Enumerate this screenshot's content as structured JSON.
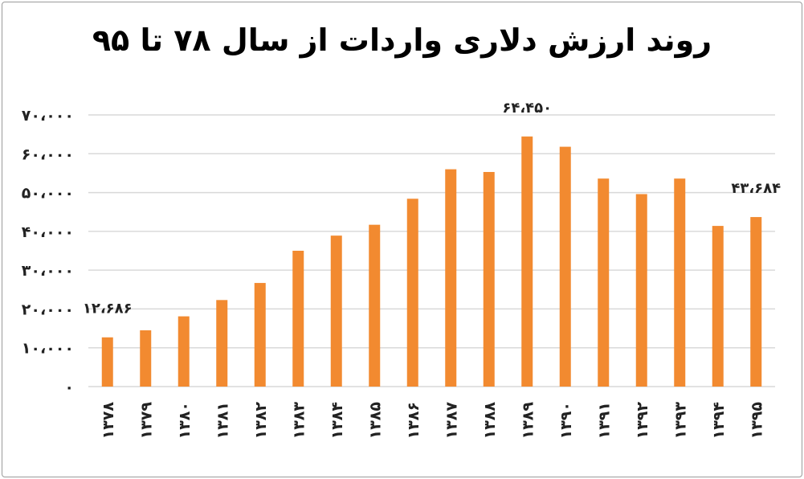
{
  "chart_data": {
    "type": "bar",
    "title": "روند ارزش دلاری واردات از سال ۷۸ تا ۹۵",
    "categories": [
      "۱۳۷۸",
      "۱۳۷۹",
      "۱۳۸۰",
      "۱۳۸۱",
      "۱۳۸۲",
      "۱۳۸۳",
      "۱۳۸۴",
      "۱۳۸۵",
      "۱۳۸۶",
      "۱۳۸۷",
      "۱۳۸۸",
      "۱۳۸۹",
      "۱۳۹۰",
      "۱۳۹۱",
      "۱۳۹۲",
      "۱۳۹۳",
      "۱۳۹۴",
      "۱۳۹۵"
    ],
    "values": [
      12686,
      14500,
      18100,
      22300,
      26700,
      35000,
      38900,
      41700,
      48400,
      56000,
      55300,
      64450,
      61800,
      53600,
      49600,
      53600,
      41400,
      43684
    ],
    "ylim": [
      0,
      70000
    ],
    "yticks": [
      0,
      10000,
      20000,
      30000,
      40000,
      50000,
      60000,
      70000
    ],
    "ytick_labels": [
      "۰",
      "۱۰،۰۰۰",
      "۲۰،۰۰۰",
      "۳۰،۰۰۰",
      "۴۰،۰۰۰",
      "۵۰،۰۰۰",
      "۶۰،۰۰۰",
      "۷۰،۰۰۰"
    ],
    "data_labels": [
      {
        "index": 0,
        "text": "۱۲،۶۸۶"
      },
      {
        "index": 11,
        "text": "۶۴،۴۵۰"
      },
      {
        "index": 17,
        "text": "۴۳،۶۸۴"
      }
    ],
    "grid": true,
    "bar_color": "#F28A30",
    "grid_color": "#d9d9d9"
  }
}
